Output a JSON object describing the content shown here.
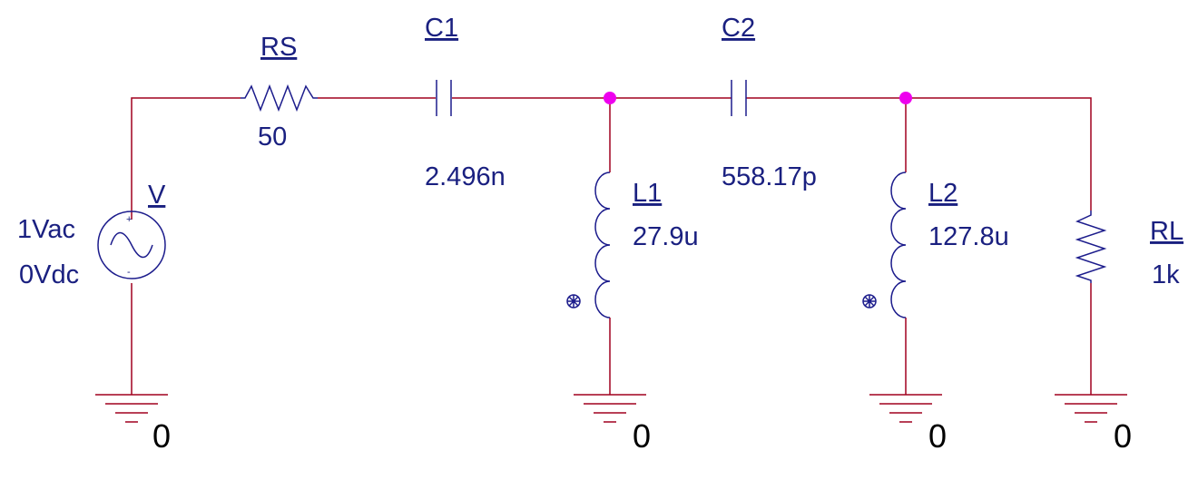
{
  "colors": {
    "wire": "#a1001f",
    "part": "#1c1c8c",
    "text": "#1a2080",
    "junction": "#ee00ee",
    "ground_label": "#000000"
  },
  "source": {
    "ref": "V",
    "ac": "1Vac",
    "dc": "0Vdc",
    "plus": "+",
    "minus": "-"
  },
  "rs": {
    "ref": "RS",
    "value": "50"
  },
  "c1": {
    "ref": "C1",
    "value": "2.496n"
  },
  "c2": {
    "ref": "C2",
    "value": "558.17p"
  },
  "l1": {
    "ref": "L1",
    "value": "27.9u"
  },
  "l2": {
    "ref": "L2",
    "value": "127.8u"
  },
  "rl": {
    "ref": "RL",
    "value": "1k"
  },
  "grounds": [
    "0",
    "0",
    "0",
    "0"
  ]
}
